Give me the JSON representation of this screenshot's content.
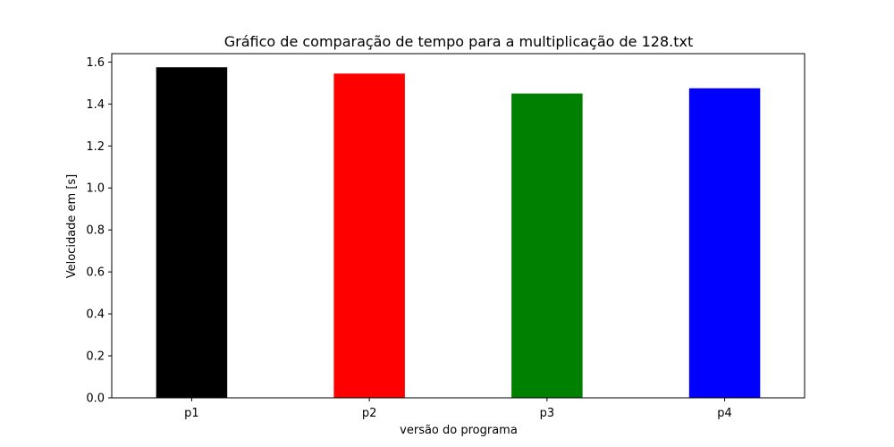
{
  "chart_data": {
    "type": "bar",
    "title": "Gráfico de comparação de tempo para a multiplicação de 128.txt",
    "xlabel": "versão do programa",
    "ylabel": "Velocidade em [s]",
    "categories": [
      "p1",
      "p2",
      "p3",
      "p4"
    ],
    "values": [
      1.575,
      1.545,
      1.45,
      1.475
    ],
    "colors": [
      "#000000",
      "#ff0000",
      "#008000",
      "#0000ff"
    ],
    "ylim": [
      0,
      1.64
    ],
    "yticks": [
      0.0,
      0.2,
      0.4,
      0.6,
      0.8,
      1.0,
      1.2,
      1.4,
      1.6
    ],
    "ytick_labels": [
      "0.0",
      "0.2",
      "0.4",
      "0.6",
      "0.8",
      "1.0",
      "1.2",
      "1.4",
      "1.6"
    ],
    "grid": false,
    "legend": "none"
  }
}
